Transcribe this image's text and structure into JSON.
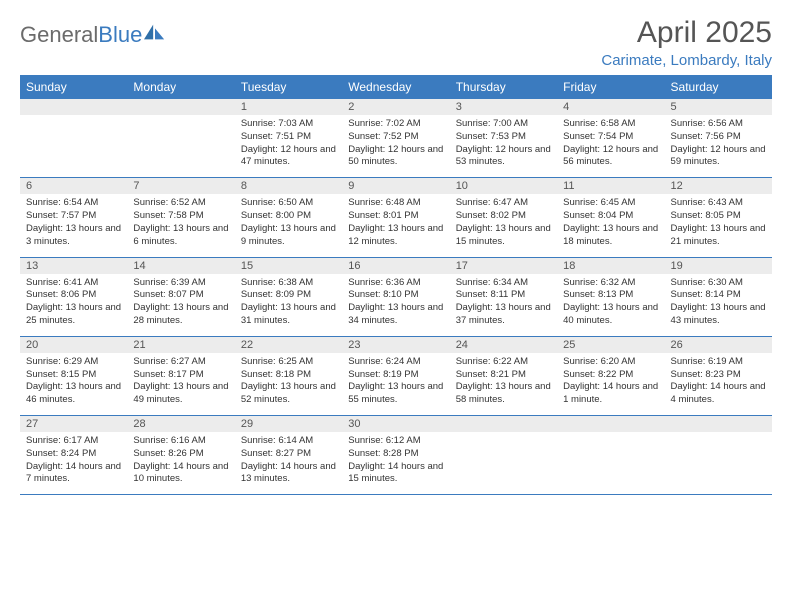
{
  "logo": {
    "word1": "General",
    "word2": "Blue"
  },
  "title": "April 2025",
  "location": "Carimate, Lombardy, Italy",
  "colors": {
    "header_bg": "#3b7bbf",
    "header_fg": "#ffffff",
    "daynum_bg": "#ececec",
    "border": "#3b7bbf",
    "logo_gray": "#6b6b6b",
    "logo_blue": "#3b7bbf",
    "text": "#333333"
  },
  "typography": {
    "title_fontsize": 30,
    "location_fontsize": 15,
    "weekday_fontsize": 12,
    "daynum_fontsize": 11,
    "content_fontsize": 9.5
  },
  "weekdays": [
    "Sunday",
    "Monday",
    "Tuesday",
    "Wednesday",
    "Thursday",
    "Friday",
    "Saturday"
  ],
  "weeks": [
    [
      null,
      null,
      {
        "n": "1",
        "sunrise": "7:03 AM",
        "sunset": "7:51 PM",
        "daylight": "12 hours and 47 minutes."
      },
      {
        "n": "2",
        "sunrise": "7:02 AM",
        "sunset": "7:52 PM",
        "daylight": "12 hours and 50 minutes."
      },
      {
        "n": "3",
        "sunrise": "7:00 AM",
        "sunset": "7:53 PM",
        "daylight": "12 hours and 53 minutes."
      },
      {
        "n": "4",
        "sunrise": "6:58 AM",
        "sunset": "7:54 PM",
        "daylight": "12 hours and 56 minutes."
      },
      {
        "n": "5",
        "sunrise": "6:56 AM",
        "sunset": "7:56 PM",
        "daylight": "12 hours and 59 minutes."
      }
    ],
    [
      {
        "n": "6",
        "sunrise": "6:54 AM",
        "sunset": "7:57 PM",
        "daylight": "13 hours and 3 minutes."
      },
      {
        "n": "7",
        "sunrise": "6:52 AM",
        "sunset": "7:58 PM",
        "daylight": "13 hours and 6 minutes."
      },
      {
        "n": "8",
        "sunrise": "6:50 AM",
        "sunset": "8:00 PM",
        "daylight": "13 hours and 9 minutes."
      },
      {
        "n": "9",
        "sunrise": "6:48 AM",
        "sunset": "8:01 PM",
        "daylight": "13 hours and 12 minutes."
      },
      {
        "n": "10",
        "sunrise": "6:47 AM",
        "sunset": "8:02 PM",
        "daylight": "13 hours and 15 minutes."
      },
      {
        "n": "11",
        "sunrise": "6:45 AM",
        "sunset": "8:04 PM",
        "daylight": "13 hours and 18 minutes."
      },
      {
        "n": "12",
        "sunrise": "6:43 AM",
        "sunset": "8:05 PM",
        "daylight": "13 hours and 21 minutes."
      }
    ],
    [
      {
        "n": "13",
        "sunrise": "6:41 AM",
        "sunset": "8:06 PM",
        "daylight": "13 hours and 25 minutes."
      },
      {
        "n": "14",
        "sunrise": "6:39 AM",
        "sunset": "8:07 PM",
        "daylight": "13 hours and 28 minutes."
      },
      {
        "n": "15",
        "sunrise": "6:38 AM",
        "sunset": "8:09 PM",
        "daylight": "13 hours and 31 minutes."
      },
      {
        "n": "16",
        "sunrise": "6:36 AM",
        "sunset": "8:10 PM",
        "daylight": "13 hours and 34 minutes."
      },
      {
        "n": "17",
        "sunrise": "6:34 AM",
        "sunset": "8:11 PM",
        "daylight": "13 hours and 37 minutes."
      },
      {
        "n": "18",
        "sunrise": "6:32 AM",
        "sunset": "8:13 PM",
        "daylight": "13 hours and 40 minutes."
      },
      {
        "n": "19",
        "sunrise": "6:30 AM",
        "sunset": "8:14 PM",
        "daylight": "13 hours and 43 minutes."
      }
    ],
    [
      {
        "n": "20",
        "sunrise": "6:29 AM",
        "sunset": "8:15 PM",
        "daylight": "13 hours and 46 minutes."
      },
      {
        "n": "21",
        "sunrise": "6:27 AM",
        "sunset": "8:17 PM",
        "daylight": "13 hours and 49 minutes."
      },
      {
        "n": "22",
        "sunrise": "6:25 AM",
        "sunset": "8:18 PM",
        "daylight": "13 hours and 52 minutes."
      },
      {
        "n": "23",
        "sunrise": "6:24 AM",
        "sunset": "8:19 PM",
        "daylight": "13 hours and 55 minutes."
      },
      {
        "n": "24",
        "sunrise": "6:22 AM",
        "sunset": "8:21 PM",
        "daylight": "13 hours and 58 minutes."
      },
      {
        "n": "25",
        "sunrise": "6:20 AM",
        "sunset": "8:22 PM",
        "daylight": "14 hours and 1 minute."
      },
      {
        "n": "26",
        "sunrise": "6:19 AM",
        "sunset": "8:23 PM",
        "daylight": "14 hours and 4 minutes."
      }
    ],
    [
      {
        "n": "27",
        "sunrise": "6:17 AM",
        "sunset": "8:24 PM",
        "daylight": "14 hours and 7 minutes."
      },
      {
        "n": "28",
        "sunrise": "6:16 AM",
        "sunset": "8:26 PM",
        "daylight": "14 hours and 10 minutes."
      },
      {
        "n": "29",
        "sunrise": "6:14 AM",
        "sunset": "8:27 PM",
        "daylight": "14 hours and 13 minutes."
      },
      {
        "n": "30",
        "sunrise": "6:12 AM",
        "sunset": "8:28 PM",
        "daylight": "14 hours and 15 minutes."
      },
      null,
      null,
      null
    ]
  ],
  "labels": {
    "sunrise": "Sunrise:",
    "sunset": "Sunset:",
    "daylight": "Daylight:"
  }
}
